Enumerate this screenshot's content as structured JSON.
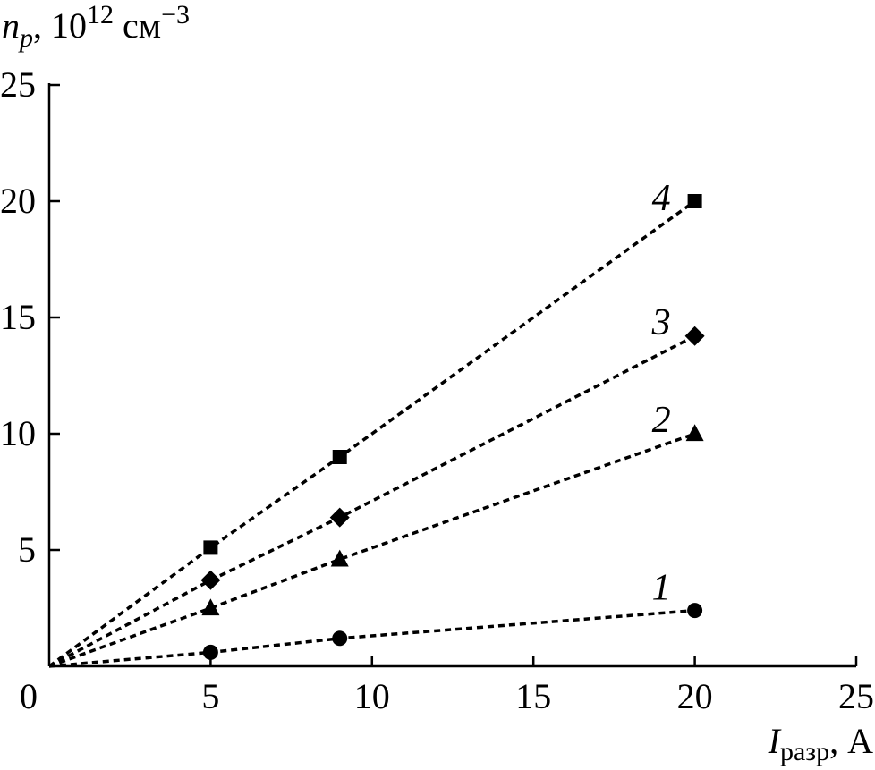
{
  "chart_data": {
    "type": "scatter",
    "xlabel": {
      "main": "I",
      "sub": "разр",
      "unit": ", A"
    },
    "ylabel": {
      "main": "n",
      "sub": "p",
      "unit": ", 10",
      "exp": "12",
      "unit2": " см",
      "unit2_exp": "−3"
    },
    "xlim": [
      0,
      25
    ],
    "ylim": [
      0,
      25
    ],
    "xticks": [
      "0",
      "5",
      "10",
      "15",
      "20",
      "25"
    ],
    "yticks": [
      "5",
      "10",
      "15",
      "20",
      "25"
    ],
    "grid": false,
    "series": [
      {
        "label": "1",
        "marker": "circle",
        "x": [
          0,
          5,
          9,
          20
        ],
        "y": [
          0,
          0.6,
          1.2,
          2.4
        ]
      },
      {
        "label": "2",
        "marker": "triangle",
        "x": [
          0,
          5,
          9,
          20
        ],
        "y": [
          0,
          2.5,
          4.6,
          10.0
        ]
      },
      {
        "label": "3",
        "marker": "diamond",
        "x": [
          0,
          5,
          9,
          20
        ],
        "y": [
          0,
          3.7,
          6.4,
          14.2
        ]
      },
      {
        "label": "4",
        "marker": "square",
        "x": [
          0,
          5,
          9,
          20
        ],
        "y": [
          0,
          5.1,
          9.0,
          20.0
        ]
      }
    ]
  }
}
